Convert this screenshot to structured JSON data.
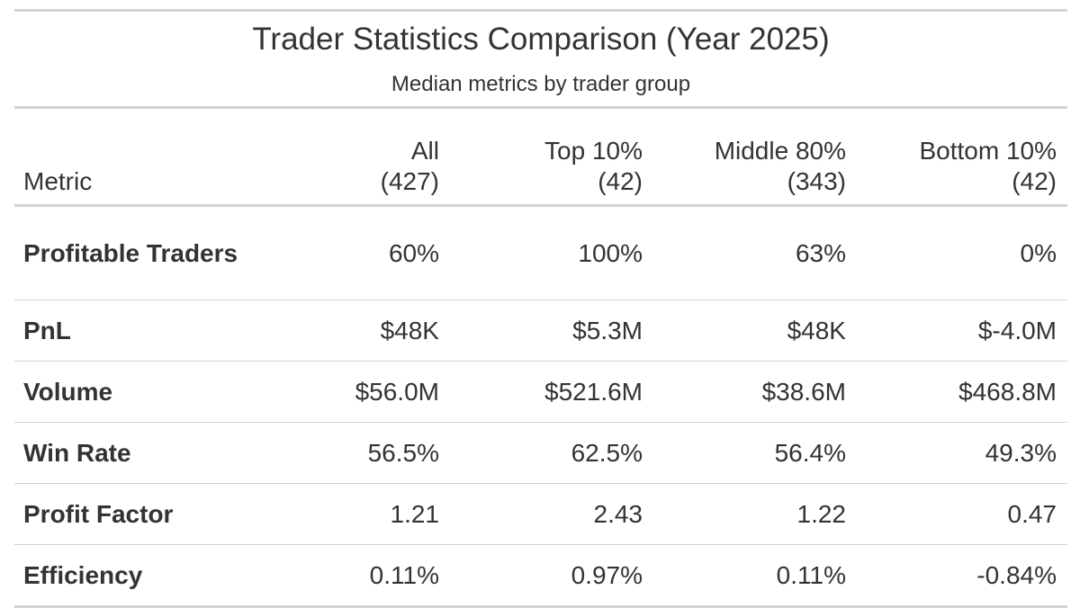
{
  "chart_data": {
    "type": "table",
    "title": "Trader Statistics Comparison (Year 2025)",
    "subtitle": "Median metrics by trader group",
    "columns": [
      {
        "label": "Metric",
        "label_line2": ""
      },
      {
        "label": "All",
        "label_line2": "(427)"
      },
      {
        "label": "Top 10%",
        "label_line2": "(42)"
      },
      {
        "label": "Middle 80%",
        "label_line2": "(343)"
      },
      {
        "label": "Bottom 10%",
        "label_line2": "(42)"
      }
    ],
    "rows": [
      {
        "metric": "Profitable Traders",
        "values": [
          "60%",
          "100%",
          "63%",
          "0%"
        ]
      },
      {
        "metric": "PnL",
        "values": [
          "$48K",
          "$5.3M",
          "$48K",
          "$-4.0M"
        ]
      },
      {
        "metric": "Volume",
        "values": [
          "$56.0M",
          "$521.6M",
          "$38.6M",
          "$468.8M"
        ]
      },
      {
        "metric": "Win Rate",
        "values": [
          "56.5%",
          "62.5%",
          "56.4%",
          "49.3%"
        ]
      },
      {
        "metric": "Profit Factor",
        "values": [
          "1.21",
          "2.43",
          "1.22",
          "0.47"
        ]
      },
      {
        "metric": "Efficiency",
        "values": [
          "0.11%",
          "0.97%",
          "0.11%",
          "-0.84%"
        ]
      }
    ]
  },
  "colors": {
    "text": "#333333",
    "rule": "#d3d3d3",
    "background": "#ffffff"
  }
}
